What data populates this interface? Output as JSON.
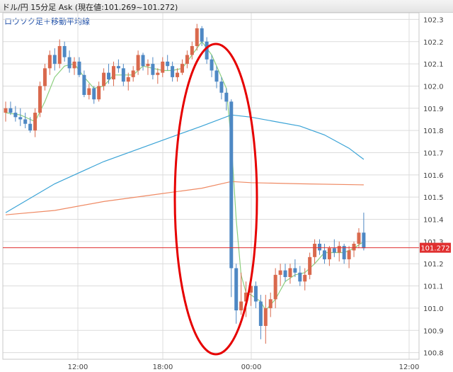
{
  "header": {
    "title": "ドル/円 15分足 Ask (現在値:101.269~101.272)"
  },
  "indicator_label": "ロウソク足＋移動平均線",
  "chart_data": {
    "type": "candlestick",
    "title": "ドル/円 15分足 Ask (現在値:101.269~101.272)",
    "subtitle": "ロウソク足＋移動平均線",
    "y_ticks": [
      102.3,
      102.2,
      102.1,
      102.0,
      101.9,
      101.8,
      101.7,
      101.6,
      101.5,
      101.4,
      101.3,
      101.2,
      101.1,
      101.0,
      100.9,
      100.8
    ],
    "ylim": [
      100.77,
      102.33
    ],
    "x_ticks": [
      "12:00",
      "18:00",
      "00:00",
      "12:00"
    ],
    "current_price": 101.272,
    "current_price_label": "101.272",
    "ohlc": [
      [
        101.88,
        101.93,
        101.84,
        101.9
      ],
      [
        101.9,
        101.93,
        101.87,
        101.88
      ],
      [
        101.88,
        101.91,
        101.84,
        101.86
      ],
      [
        101.86,
        101.9,
        101.82,
        101.85
      ],
      [
        101.85,
        101.88,
        101.81,
        101.83
      ],
      [
        101.83,
        101.86,
        101.79,
        101.8
      ],
      [
        101.8,
        101.9,
        101.77,
        101.88
      ],
      [
        101.88,
        102.02,
        101.86,
        102.0
      ],
      [
        102.0,
        102.1,
        101.98,
        102.08
      ],
      [
        102.08,
        102.16,
        102.05,
        102.14
      ],
      [
        102.14,
        102.17,
        102.07,
        102.1
      ],
      [
        102.1,
        102.21,
        102.08,
        102.18
      ],
      [
        102.18,
        102.2,
        102.11,
        102.13
      ],
      [
        102.13,
        102.16,
        102.06,
        102.08
      ],
      [
        102.08,
        102.13,
        102.05,
        102.11
      ],
      [
        102.11,
        102.13,
        102.04,
        102.05
      ],
      [
        102.05,
        102.07,
        101.95,
        101.96
      ],
      [
        101.96,
        102.01,
        101.94,
        101.99
      ],
      [
        101.99,
        102.0,
        101.92,
        101.94
      ],
      [
        101.94,
        102.02,
        101.93,
        102.0
      ],
      [
        102.0,
        102.08,
        101.98,
        102.06
      ],
      [
        102.06,
        102.1,
        102.01,
        102.03
      ],
      [
        102.03,
        102.11,
        102.0,
        102.09
      ],
      [
        102.09,
        102.12,
        102.06,
        102.08
      ],
      [
        102.08,
        102.1,
        102.0,
        102.02
      ],
      [
        102.02,
        102.06,
        101.98,
        102.04
      ],
      [
        102.04,
        102.09,
        102.02,
        102.07
      ],
      [
        102.07,
        102.16,
        102.05,
        102.14
      ],
      [
        102.14,
        102.15,
        102.07,
        102.09
      ],
      [
        102.09,
        102.12,
        102.05,
        102.1
      ],
      [
        102.1,
        102.13,
        102.03,
        102.05
      ],
      [
        102.05,
        102.08,
        102.01,
        102.06
      ],
      [
        102.06,
        102.13,
        102.04,
        102.11
      ],
      [
        102.11,
        102.14,
        102.07,
        102.09
      ],
      [
        102.09,
        102.11,
        102.02,
        102.04
      ],
      [
        102.04,
        102.08,
        102.02,
        102.06
      ],
      [
        102.06,
        102.12,
        102.05,
        102.1
      ],
      [
        102.1,
        102.16,
        102.08,
        102.14
      ],
      [
        102.14,
        102.2,
        102.12,
        102.18
      ],
      [
        102.18,
        102.28,
        102.16,
        102.26
      ],
      [
        102.26,
        102.27,
        102.18,
        102.2
      ],
      [
        102.2,
        102.22,
        102.1,
        102.12
      ],
      [
        102.12,
        102.14,
        102.04,
        102.07
      ],
      [
        102.07,
        102.09,
        101.99,
        102.02
      ],
      [
        102.02,
        102.04,
        101.94,
        101.97
      ],
      [
        101.97,
        101.99,
        101.89,
        101.93
      ],
      [
        101.93,
        101.94,
        101.05,
        101.18
      ],
      [
        101.18,
        101.2,
        100.93,
        100.99
      ],
      [
        100.99,
        101.16,
        100.97,
        101.03
      ],
      [
        101.03,
        101.12,
        100.96,
        101.07
      ],
      [
        101.07,
        101.13,
        101.01,
        101.1
      ],
      [
        101.1,
        101.12,
        101.0,
        101.03
      ],
      [
        101.03,
        101.06,
        100.86,
        100.92
      ],
      [
        100.92,
        101.06,
        100.84,
        101.0
      ],
      [
        101.0,
        101.07,
        100.96,
        101.04
      ],
      [
        101.04,
        101.18,
        101.0,
        101.15
      ],
      [
        101.15,
        101.2,
        101.1,
        101.17
      ],
      [
        101.17,
        101.2,
        101.12,
        101.14
      ],
      [
        101.14,
        101.2,
        101.11,
        101.18
      ],
      [
        101.18,
        101.22,
        101.14,
        101.16
      ],
      [
        101.16,
        101.19,
        101.1,
        101.12
      ],
      [
        101.12,
        101.18,
        101.08,
        101.15
      ],
      [
        101.15,
        101.25,
        101.13,
        101.23
      ],
      [
        101.23,
        101.31,
        101.2,
        101.29
      ],
      [
        101.29,
        101.31,
        101.24,
        101.26
      ],
      [
        101.26,
        101.29,
        101.2,
        101.22
      ],
      [
        101.22,
        101.28,
        101.19,
        101.27
      ],
      [
        101.27,
        101.31,
        101.23,
        101.25
      ],
      [
        101.25,
        101.3,
        101.21,
        101.28
      ],
      [
        101.28,
        101.29,
        101.2,
        101.22
      ],
      [
        101.22,
        101.28,
        101.18,
        101.26
      ],
      [
        101.26,
        101.3,
        101.23,
        101.29
      ],
      [
        101.29,
        101.36,
        101.27,
        101.34
      ],
      [
        101.34,
        101.43,
        101.26,
        101.27
      ]
    ],
    "series": [
      {
        "name": "",
        "color": "#8ccf7e",
        "values": [
          [
            0,
            101.88
          ],
          [
            3,
            101.87
          ],
          [
            5,
            101.85
          ],
          [
            6,
            101.84
          ],
          [
            8,
            101.93
          ],
          [
            10,
            102.04
          ],
          [
            12,
            102.09
          ],
          [
            14,
            102.1
          ],
          [
            16,
            102.04
          ],
          [
            18,
            101.99
          ],
          [
            20,
            102.0
          ],
          [
            22,
            102.05
          ],
          [
            24,
            102.05
          ],
          [
            26,
            102.05
          ],
          [
            28,
            102.09
          ],
          [
            30,
            102.08
          ],
          [
            32,
            102.07
          ],
          [
            34,
            102.07
          ],
          [
            36,
            102.08
          ],
          [
            38,
            102.14
          ],
          [
            40,
            102.2
          ],
          [
            42,
            102.14
          ],
          [
            44,
            102.04
          ],
          [
            45,
            101.99
          ],
          [
            46,
            101.75
          ],
          [
            47,
            101.4
          ],
          [
            48,
            101.15
          ],
          [
            49,
            101.07
          ],
          [
            50,
            101.06
          ],
          [
            52,
            101.03
          ],
          [
            53,
            100.99
          ],
          [
            55,
            101.04
          ],
          [
            57,
            101.12
          ],
          [
            59,
            101.15
          ],
          [
            61,
            101.16
          ],
          [
            63,
            101.2
          ],
          [
            65,
            101.25
          ],
          [
            67,
            101.25
          ],
          [
            69,
            101.25
          ],
          [
            71,
            101.27
          ],
          [
            73,
            101.3
          ]
        ]
      },
      {
        "name": "",
        "color": "#3aa3d6",
        "values": [
          [
            0,
            101.43
          ],
          [
            10,
            101.56
          ],
          [
            20,
            101.66
          ],
          [
            30,
            101.74
          ],
          [
            40,
            101.82
          ],
          [
            46,
            101.87
          ],
          [
            50,
            101.86
          ],
          [
            55,
            101.84
          ],
          [
            60,
            101.82
          ],
          [
            65,
            101.78
          ],
          [
            70,
            101.72
          ],
          [
            73,
            101.67
          ]
        ]
      },
      {
        "name": "",
        "color": "#ef8a64",
        "values": [
          [
            0,
            101.42
          ],
          [
            10,
            101.44
          ],
          [
            20,
            101.48
          ],
          [
            30,
            101.51
          ],
          [
            40,
            101.54
          ],
          [
            46,
            101.57
          ],
          [
            50,
            101.565
          ],
          [
            60,
            101.56
          ],
          [
            73,
            101.555
          ]
        ]
      }
    ],
    "annotation": {
      "shape": "ellipse",
      "color": "#e60000"
    },
    "colors": {
      "up": "#d9694d",
      "down": "#4e88c4",
      "grid": "#dcdcdc",
      "price_line": "#e03030",
      "price_label_bg": "#e03030"
    }
  }
}
